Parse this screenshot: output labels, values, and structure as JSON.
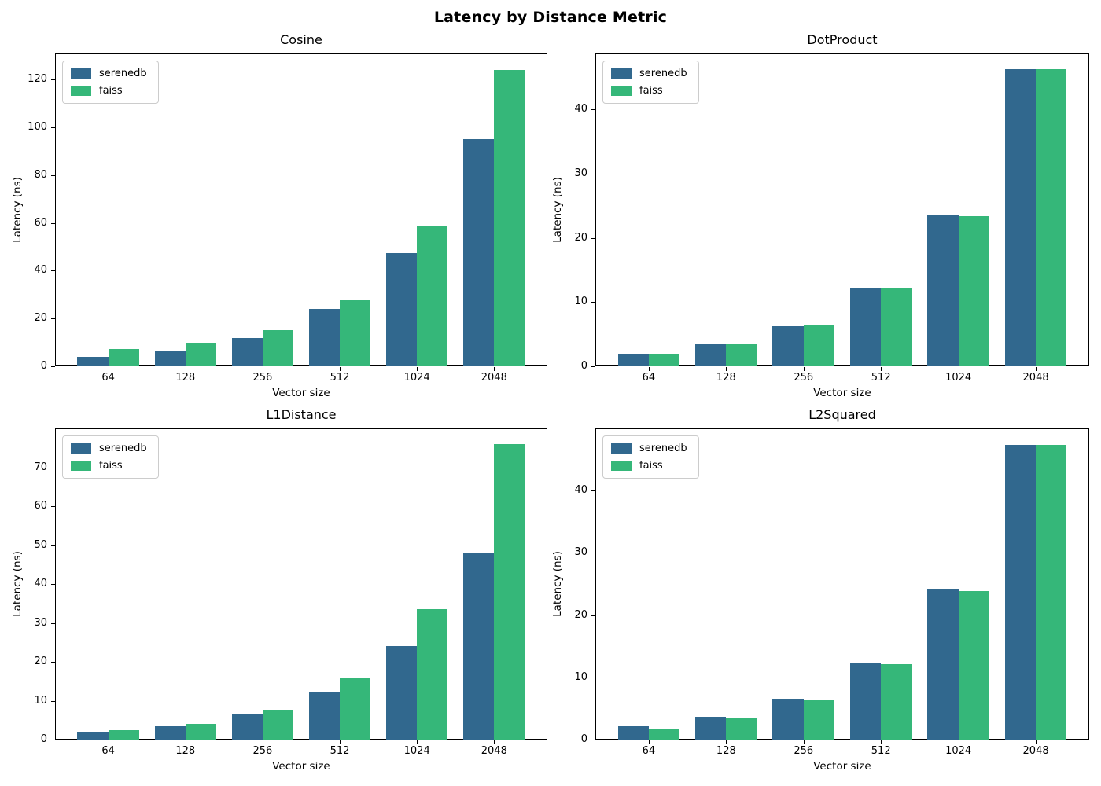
{
  "suptitle": "Latency by Distance Metric",
  "colors": {
    "serenedb": "#31688e",
    "faiss": "#35b779"
  },
  "chart_data": [
    {
      "type": "bar",
      "title": "Cosine",
      "xlabel": "Vector size",
      "ylabel": "Latency (ns)",
      "categories": [
        "64",
        "128",
        "256",
        "512",
        "1024",
        "2048"
      ],
      "series": [
        {
          "name": "serenedb",
          "values": [
            3.9,
            6.3,
            11.9,
            24.0,
            47.5,
            95.2
          ]
        },
        {
          "name": "faiss",
          "values": [
            7.2,
            9.7,
            15.2,
            27.5,
            58.5,
            124.2
          ]
        }
      ],
      "ylim": [
        0,
        131
      ],
      "yticks": [
        0,
        20,
        40,
        60,
        80,
        100,
        120
      ],
      "legend": [
        "serenedb",
        "faiss"
      ],
      "legend_position": "upper left",
      "grid": false
    },
    {
      "type": "bar",
      "title": "DotProduct",
      "xlabel": "Vector size",
      "ylabel": "Latency (ns)",
      "categories": [
        "64",
        "128",
        "256",
        "512",
        "1024",
        "2048"
      ],
      "series": [
        {
          "name": "serenedb",
          "values": [
            1.8,
            3.4,
            6.2,
            12.1,
            23.6,
            46.2
          ]
        },
        {
          "name": "faiss",
          "values": [
            1.8,
            3.4,
            6.4,
            12.1,
            23.4,
            46.3
          ]
        }
      ],
      "ylim": [
        0,
        48.7
      ],
      "yticks": [
        0,
        10,
        20,
        30,
        40
      ],
      "legend": [
        "serenedb",
        "faiss"
      ],
      "legend_position": "upper left",
      "grid": false
    },
    {
      "type": "bar",
      "title": "L1Distance",
      "xlabel": "Vector size",
      "ylabel": "Latency (ns)",
      "categories": [
        "64",
        "128",
        "256",
        "512",
        "1024",
        "2048"
      ],
      "series": [
        {
          "name": "serenedb",
          "values": [
            2.1,
            3.5,
            6.5,
            12.4,
            24.1,
            47.8
          ]
        },
        {
          "name": "faiss",
          "values": [
            2.4,
            4.1,
            7.7,
            15.8,
            33.5,
            76.0
          ]
        }
      ],
      "ylim": [
        0,
        80
      ],
      "yticks": [
        0,
        10,
        20,
        30,
        40,
        50,
        60,
        70
      ],
      "legend": [
        "serenedb",
        "faiss"
      ],
      "legend_position": "upper left",
      "grid": false
    },
    {
      "type": "bar",
      "title": "L2Squared",
      "xlabel": "Vector size",
      "ylabel": "Latency (ns)",
      "categories": [
        "64",
        "128",
        "256",
        "512",
        "1024",
        "2048"
      ],
      "series": [
        {
          "name": "serenedb",
          "values": [
            2.1,
            3.7,
            6.6,
            12.4,
            24.1,
            47.4
          ]
        },
        {
          "name": "faiss",
          "values": [
            1.8,
            3.5,
            6.4,
            12.1,
            23.9,
            47.4
          ]
        }
      ],
      "ylim": [
        0,
        50
      ],
      "yticks": [
        0,
        10,
        20,
        30,
        40
      ],
      "legend": [
        "serenedb",
        "faiss"
      ],
      "legend_position": "upper left",
      "grid": false
    }
  ]
}
